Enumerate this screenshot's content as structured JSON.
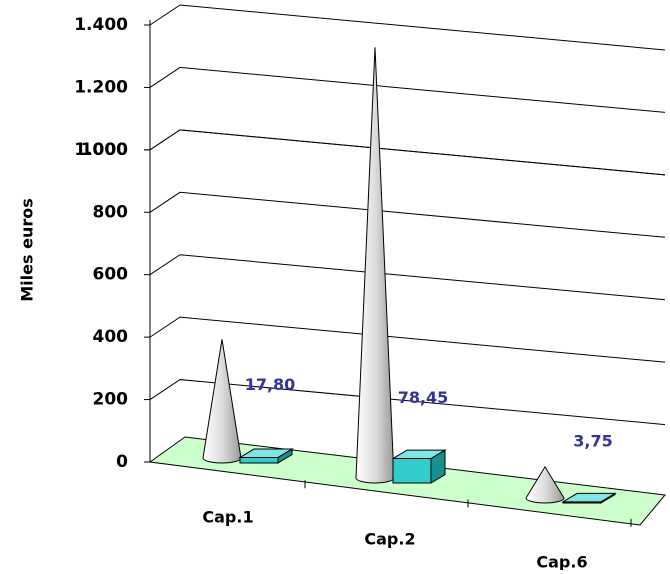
{
  "chart_data": {
    "type": "bar3d",
    "y_label": "Miles euros",
    "categories": [
      "Cap.1",
      "Cap.2",
      "Cap.6"
    ],
    "series": [
      {
        "color": "#d4d4d4",
        "shape": "cone",
        "values": [
          380,
          1380,
          100
        ]
      },
      {
        "color": "#33cccc",
        "shape": "box",
        "values": [
          17.8,
          78.45,
          3.75
        ],
        "value_labels": [
          "17,80",
          "78,45",
          "3,75"
        ],
        "label_color": "#333399"
      }
    ],
    "ylim": [
      0,
      1400
    ],
    "yticks": [
      0,
      200,
      400,
      600,
      800,
      1000,
      {
        "value": 1200,
        "label": "1.200"
      },
      {
        "value": 1000,
        "label": "1.000"
      },
      {
        "value": 1400,
        "label": "1.400"
      }
    ],
    "floor_color": "#ccffcc",
    "grid": true
  }
}
